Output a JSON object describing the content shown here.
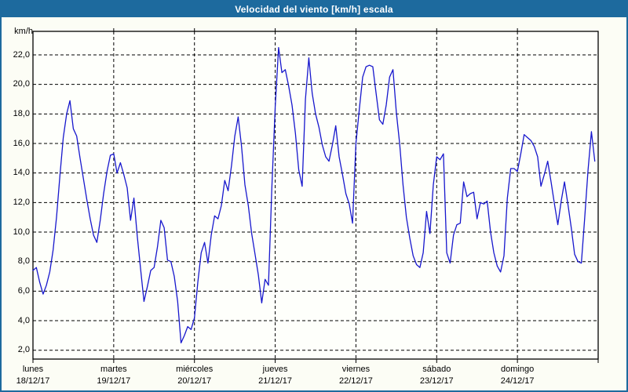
{
  "window": {
    "title_bar": {
      "label": "Velocidad del viento [km/h] escala",
      "bg_color": "#1d6a9e",
      "text_color": "#ffffff"
    }
  },
  "chart_data": {
    "type": "line",
    "title": "Velocidad del viento [km/h] escala",
    "ylabel": "km/h",
    "xlabel": "",
    "grid": true,
    "legend": "none",
    "line_color": "#1717cd",
    "ylim": [
      2,
      22
    ],
    "ylim_draw": [
      1.4,
      23.6
    ],
    "yticks": [
      {
        "v": 22,
        "label": "22,0"
      },
      {
        "v": 20,
        "label": "20,0"
      },
      {
        "v": 18,
        "label": "18,0"
      },
      {
        "v": 16,
        "label": "16,0"
      },
      {
        "v": 14,
        "label": "14,0"
      },
      {
        "v": 12,
        "label": "12,0"
      },
      {
        "v": 10,
        "label": "10,0"
      },
      {
        "v": 8,
        "label": "8,0"
      },
      {
        "v": 6,
        "label": "6,0"
      },
      {
        "v": 4,
        "label": "4,0"
      },
      {
        "v": 2,
        "label": "2,0"
      }
    ],
    "days": [
      {
        "name": "lunes",
        "date": "18/12/17"
      },
      {
        "name": "martes",
        "date": "19/12/17"
      },
      {
        "name": "miércoles",
        "date": "20/12/17"
      },
      {
        "name": "jueves",
        "date": "21/12/17"
      },
      {
        "name": "viernes",
        "date": "22/12/17"
      },
      {
        "name": "sábado",
        "date": "23/12/17"
      },
      {
        "name": "domingo",
        "date": "24/12/17"
      }
    ],
    "hours_per_day": 24,
    "series": [
      {
        "name": "Velocidad del viento [km/h]",
        "values": [
          7.4,
          7.6,
          6.6,
          5.8,
          6.4,
          7.3,
          8.8,
          11.0,
          13.8,
          16.4,
          18.0,
          18.9,
          17.0,
          16.5,
          15.0,
          13.6,
          12.2,
          10.9,
          9.8,
          9.3,
          10.8,
          12.6,
          14.1,
          15.2,
          15.3,
          14.0,
          14.7,
          13.9,
          13.0,
          10.8,
          12.3,
          9.7,
          7.5,
          5.3,
          6.3,
          7.4,
          7.6,
          9.0,
          10.8,
          10.3,
          8.1,
          8.0,
          7.0,
          5.3,
          2.5,
          3.0,
          3.6,
          3.4,
          4.2,
          6.6,
          8.6,
          9.3,
          7.9,
          9.8,
          11.1,
          10.9,
          11.8,
          13.5,
          12.8,
          14.5,
          16.5,
          17.8,
          15.8,
          13.2,
          11.8,
          9.9,
          8.5,
          7.1,
          5.2,
          6.8,
          6.4,
          13.0,
          18.5,
          22.5,
          20.8,
          21.0,
          19.9,
          18.6,
          16.7,
          14.2,
          13.1,
          19.0,
          21.8,
          19.4,
          18.0,
          17.1,
          15.9,
          15.1,
          14.8,
          15.9,
          17.2,
          15.1,
          13.9,
          12.6,
          11.9,
          10.6,
          16.0,
          18.3,
          20.5,
          21.2,
          21.3,
          21.2,
          19.4,
          17.6,
          17.3,
          18.6,
          20.5,
          21.0,
          18.1,
          16.0,
          13.2,
          11.0,
          9.6,
          8.4,
          7.8,
          7.6,
          8.6,
          11.4,
          9.9,
          13.2,
          15.1,
          14.9,
          15.3,
          8.6,
          7.9,
          9.8,
          10.5,
          10.6,
          13.4,
          12.4,
          12.6,
          12.7,
          10.9,
          12.0,
          11.9,
          12.1,
          10.0,
          8.6,
          7.7,
          7.3,
          8.4,
          12.3,
          14.3,
          14.3,
          14.1,
          15.3,
          16.6,
          16.4,
          16.2,
          15.8,
          15.1,
          13.1,
          13.9,
          14.8,
          13.4,
          11.9,
          10.5,
          12.1,
          13.4,
          11.9,
          10.3,
          8.5,
          8.0,
          7.9,
          11.0,
          14.2,
          16.8,
          14.8
        ]
      }
    ]
  }
}
